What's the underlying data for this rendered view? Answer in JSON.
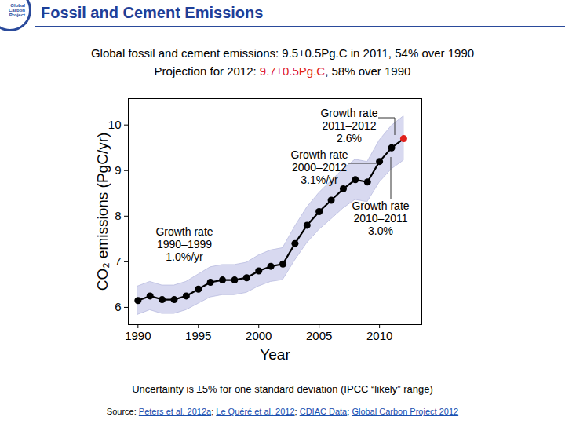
{
  "chart_data": {
    "type": "line",
    "header": "Fossil and Cement Emissions",
    "logo_text": [
      "Global",
      "Carbon",
      "Project"
    ],
    "subtitle_lines": [
      [
        {
          "text": "Global fossil and cement emissions: 9.5±0.5Pg.C in 2011, 54% over 1990"
        }
      ],
      [
        {
          "text": "Projection for 2012: "
        },
        {
          "text": "9.7±0.5Pg.C",
          "color": "#e0201c"
        },
        {
          "text": ", 58% over 1990"
        }
      ]
    ],
    "x_label": "Year",
    "y_label": "CO₂ emissions (PgC/yr)",
    "x": [
      1990,
      1991,
      1992,
      1993,
      1994,
      1995,
      1996,
      1997,
      1998,
      1999,
      2000,
      2001,
      2002,
      2003,
      2004,
      2005,
      2006,
      2007,
      2008,
      2009,
      2010,
      2011,
      2012
    ],
    "values": [
      6.15,
      6.25,
      6.17,
      6.17,
      6.25,
      6.4,
      6.55,
      6.6,
      6.6,
      6.65,
      6.8,
      6.9,
      6.95,
      7.4,
      7.8,
      8.1,
      8.35,
      8.6,
      8.8,
      8.75,
      9.2,
      9.5,
      9.7
    ],
    "uncertainty_lower": [
      5.84,
      5.94,
      5.86,
      5.86,
      5.94,
      6.08,
      6.22,
      6.27,
      6.27,
      6.32,
      6.46,
      6.56,
      6.6,
      7.03,
      7.41,
      7.7,
      7.93,
      8.17,
      8.36,
      8.31,
      8.74,
      9.03,
      9.22
    ],
    "uncertainty_upper": [
      6.46,
      6.56,
      6.48,
      6.48,
      6.56,
      6.72,
      6.88,
      6.93,
      6.93,
      6.98,
      7.14,
      7.25,
      7.3,
      7.77,
      8.19,
      8.51,
      8.77,
      9.03,
      9.24,
      9.19,
      9.66,
      9.98,
      10.19
    ],
    "color": "#000000",
    "band_color": "#d8d9f0",
    "colors": [
      "#000000",
      "#000000",
      "#000000",
      "#000000",
      "#000000",
      "#000000",
      "#000000",
      "#000000",
      "#000000",
      "#000000",
      "#000000",
      "#000000",
      "#000000",
      "#000000",
      "#000000",
      "#000000",
      "#000000",
      "#000000",
      "#000000",
      "#000000",
      "#000000",
      "#000000",
      "#e0201c"
    ],
    "marker": "circle",
    "line_style": "solid",
    "grid": false,
    "xlim": [
      1989.2,
      2013.5
    ],
    "xticks": [
      1990,
      1995,
      2000,
      2005,
      2010
    ],
    "ylim": [
      5.62,
      10.58
    ],
    "yticks": [
      6,
      7,
      8,
      9,
      10
    ],
    "annotations": [
      {
        "lines": [
          "Growth rate",
          "2011–2012",
          "2.6%"
        ]
      },
      {
        "lines": [
          "Growth rate",
          "2000–2012",
          "3.1%/yr"
        ]
      },
      {
        "lines": [
          "Growth rate",
          "2010–2011",
          "3.0%"
        ]
      },
      {
        "lines": [
          "Growth rate",
          "1990–1999",
          "1.0%/yr"
        ]
      }
    ],
    "caption": "Uncertainty is ±5% for one standard deviation (IPCC “likely” range)",
    "source": {
      "prefix": "Source:",
      "separator": "; ",
      "items": [
        "Peters et al. 2012a",
        "Le Quéré et al. 2012",
        "CDIAC Data",
        "Global Carbon Project 2012"
      ]
    }
  }
}
